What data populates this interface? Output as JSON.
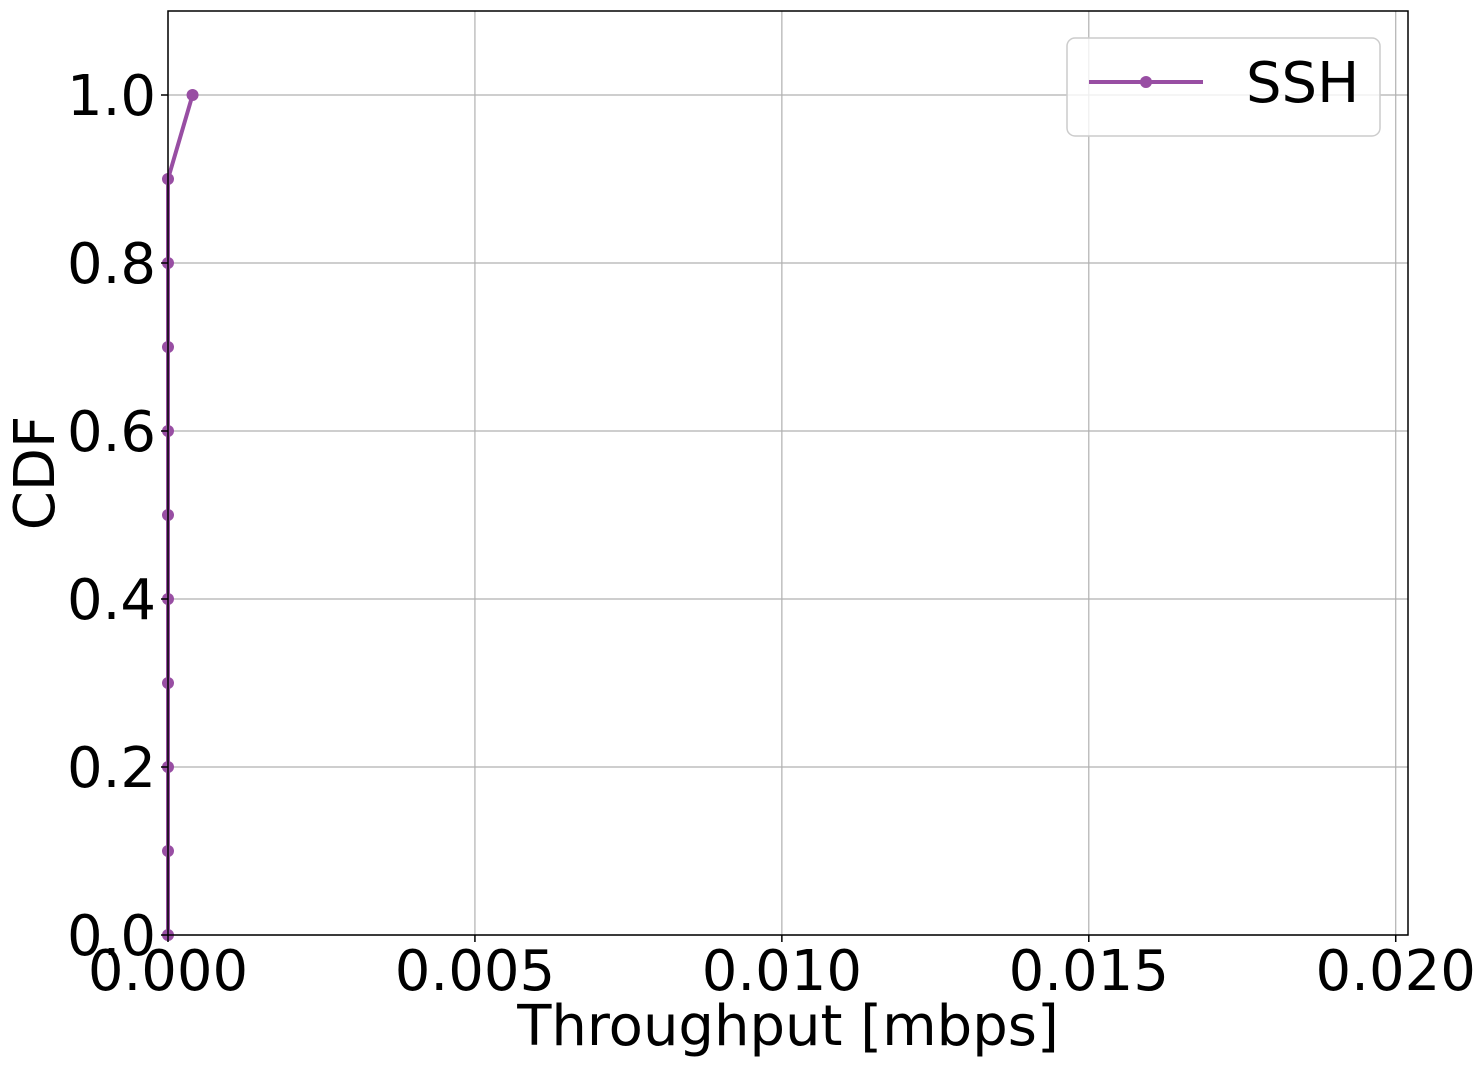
{
  "chart_data": {
    "type": "line",
    "title": "",
    "xlabel": "Throughput [mbps]",
    "ylabel": "CDF",
    "xlim": [
      0,
      0.0202
    ],
    "ylim": [
      0,
      1.1
    ],
    "xticks": [
      0.0,
      0.005,
      0.01,
      0.015,
      0.02
    ],
    "xtick_labels": [
      "0.000",
      "0.005",
      "0.010",
      "0.015",
      "0.020"
    ],
    "yticks": [
      0.0,
      0.2,
      0.4,
      0.6,
      0.8,
      1.0
    ],
    "ytick_labels": [
      "0.0",
      "0.2",
      "0.4",
      "0.6",
      "0.8",
      "1.0"
    ],
    "grid": true,
    "legend_position": "top-right",
    "series": [
      {
        "name": "SSH",
        "color": "#984ea3",
        "marker": "circle",
        "x": [
          0.0,
          0.0,
          0.0,
          0.0,
          0.0,
          0.0,
          0.0,
          0.0,
          0.0,
          0.0,
          0.0004
        ],
        "y": [
          0.0,
          0.1,
          0.2,
          0.3,
          0.4,
          0.5,
          0.6,
          0.7,
          0.8,
          0.9,
          1.0
        ]
      }
    ]
  }
}
